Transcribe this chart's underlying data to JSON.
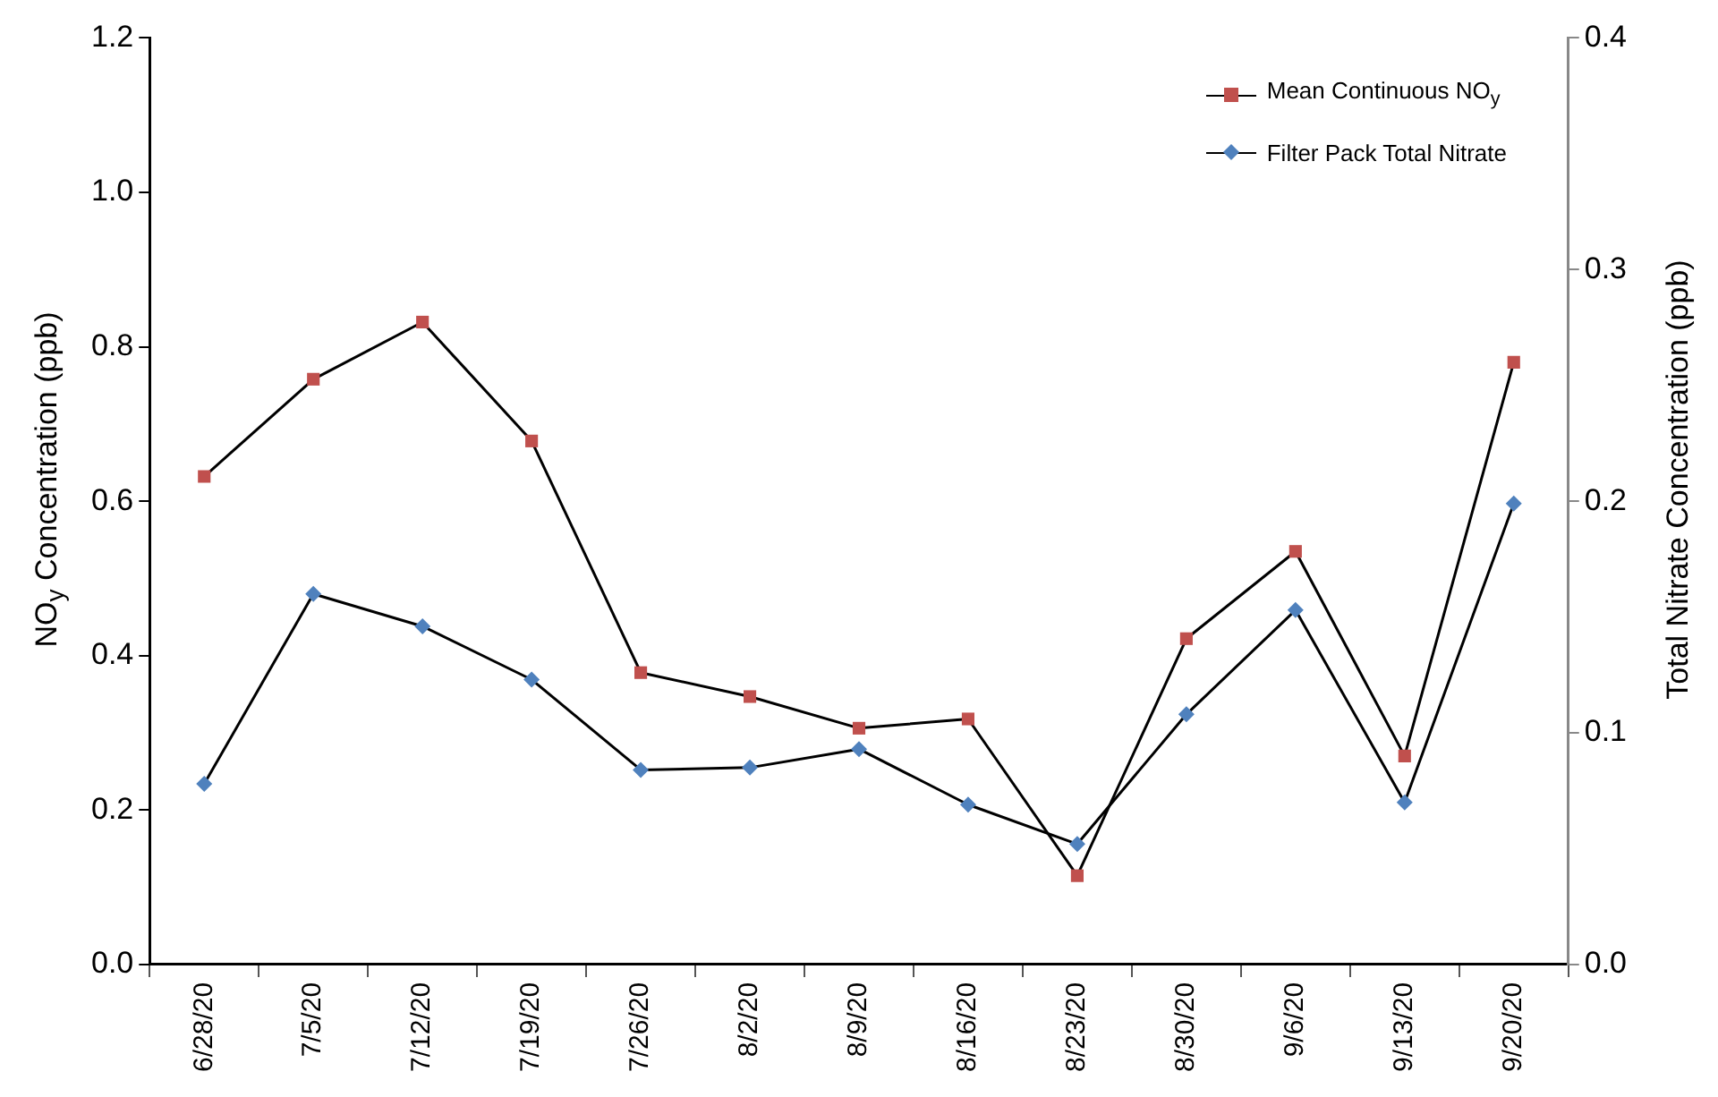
{
  "chart_data": {
    "type": "line",
    "ylabel": "NO$_{y}$ Concentration (ppb)",
    "y2label": "Total Nitrate Concentration (ppb)",
    "categories": [
      "6/28/20",
      "7/5/20",
      "7/12/20",
      "7/19/20",
      "7/26/20",
      "8/2/20",
      "8/9/20",
      "8/16/20",
      "8/23/20",
      "8/30/20",
      "9/6/20",
      "9/13/20",
      "9/20/20"
    ],
    "series": [
      {
        "name": "Mean Continuous NO$_{y}$",
        "color": "#c0504d",
        "marker": "square",
        "values": [
          0.632,
          0.758,
          0.832,
          0.678,
          0.378,
          0.347,
          0.306,
          0.318,
          0.115,
          0.422,
          0.535,
          0.27,
          0.78
        ]
      },
      {
        "name": "Filter Pack Total Nitrate",
        "color": "#4f81bd",
        "marker": "diamond",
        "axis": "y2",
        "values": [
          0.078,
          0.16,
          0.146,
          0.123,
          0.084,
          0.085,
          0.093,
          0.069,
          0.052,
          0.108,
          0.153,
          0.07,
          0.199
        ]
      }
    ],
    "ylim": [
      0,
      1.2
    ],
    "yticks": [
      {
        "value": 0,
        "label": "0.0"
      },
      {
        "value": 0.2,
        "label": "0.2"
      },
      {
        "value": 0.4,
        "label": "0.4"
      },
      {
        "value": 0.6,
        "label": "0.6"
      },
      {
        "value": 0.8,
        "label": "0.8"
      },
      {
        "value": 1,
        "label": "1.0"
      },
      {
        "value": 1.2,
        "label": "1.2"
      }
    ],
    "y2lim": [
      0,
      0.4
    ],
    "y2ticks": [
      {
        "value": 0,
        "label": "0.0"
      },
      {
        "value": 0.1,
        "label": "0.1"
      },
      {
        "value": 0.2,
        "label": "0.2"
      },
      {
        "value": 0.3,
        "label": "0.3"
      },
      {
        "value": 0.4,
        "label": "0.4"
      }
    ],
    "grid": false,
    "legend": "top right"
  }
}
